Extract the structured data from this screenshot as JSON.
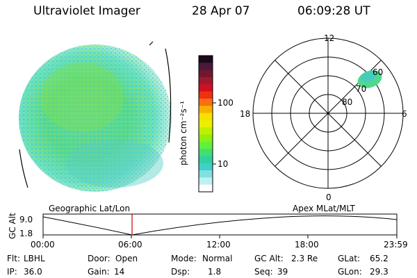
{
  "header": {
    "title": "Ultraviolet Imager",
    "date": "28 Apr 07",
    "time": "06:09:28 UT"
  },
  "colorbar": {
    "unit_label": "photon cm⁻²s⁻¹",
    "tick_labels": [
      "100",
      "10"
    ],
    "colors": [
      "#1a0a1a",
      "#4a1a3a",
      "#701830",
      "#a01830",
      "#d01020",
      "#f03010",
      "#f87010",
      "#f8b000",
      "#f8e000",
      "#e8f000",
      "#c0f000",
      "#90f010",
      "#60f040",
      "#40e070",
      "#30d0a0",
      "#40d0c8",
      "#80e0e0",
      "#c0f0f0",
      "#ffffff"
    ]
  },
  "polar": {
    "ring_labels": [
      "80",
      "70",
      "60"
    ],
    "mlt_labels": {
      "top": "12",
      "left": "18",
      "right": "6",
      "bottom": "0"
    }
  },
  "altitude_plot": {
    "ylabel": "GC Alt",
    "yticks": [
      "9.0",
      "1.8"
    ],
    "left_label": "Geographic Lat/Lon",
    "right_label": "Apex MLat/MLT",
    "xticks": [
      "00:00",
      "06:00",
      "12:00",
      "18:00",
      "23:59"
    ]
  },
  "status": {
    "row1": [
      {
        "label": "Flt:",
        "value": "LBHL"
      },
      {
        "label": "Door:",
        "value": "Open"
      },
      {
        "label": "Mode:",
        "value": "Normal"
      },
      {
        "label": "GC Alt:",
        "value": "2.3 Re"
      },
      {
        "label": "GLat:",
        "value": "65.2"
      }
    ],
    "row2": [
      {
        "label": "IP:",
        "value": "36.0"
      },
      {
        "label": "Gain:",
        "value": "14"
      },
      {
        "label": "Dsp:",
        "value": "1.8"
      },
      {
        "label": "Seq:",
        "value": "39"
      },
      {
        "label": "GLon:",
        "value": "29.3"
      }
    ]
  }
}
